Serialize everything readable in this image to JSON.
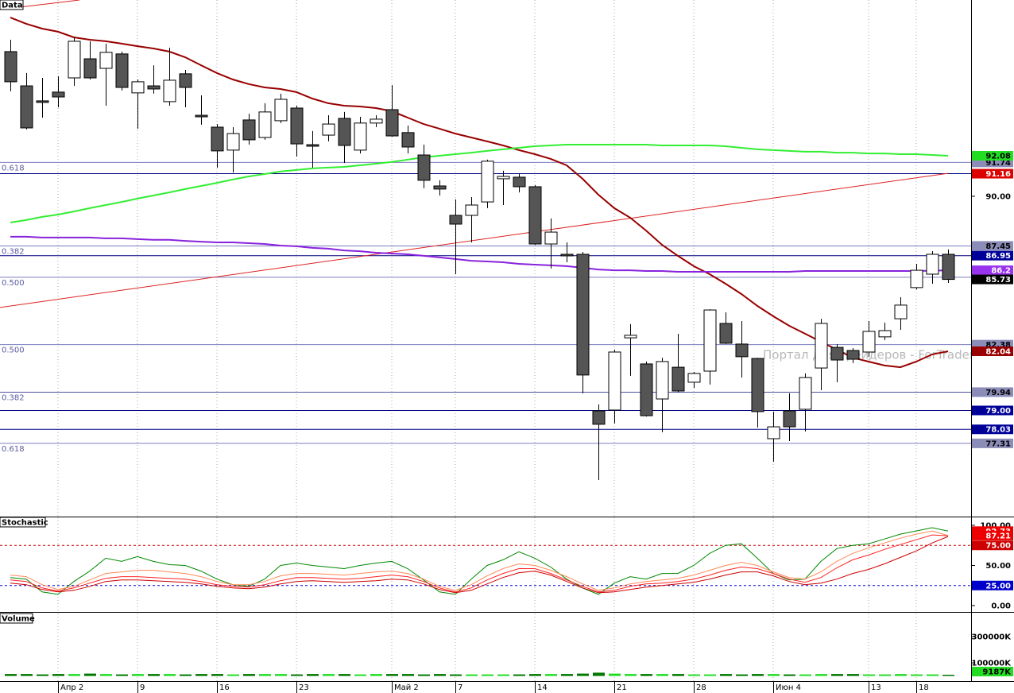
{
  "chart_data": [
    {
      "type": "candlestick",
      "title": "Data",
      "watermark": "Портал для трейдеров - ForTrader.ru",
      "categories": [
        null,
        null,
        null,
        "Апр 2",
        null,
        null,
        null,
        null,
        "9",
        null,
        null,
        null,
        null,
        "16",
        null,
        null,
        null,
        null,
        "23",
        null,
        null,
        null,
        null,
        null,
        "Май 2",
        null,
        null,
        null,
        "7",
        null,
        null,
        null,
        null,
        "14",
        null,
        null,
        null,
        null,
        "21",
        null,
        null,
        null,
        null,
        "28",
        null,
        null,
        null,
        null,
        "Июн 4",
        null,
        null,
        null,
        null,
        null,
        "13",
        null,
        null,
        "18",
        null,
        null
      ],
      "open": [
        97.43,
        95.67,
        94.9,
        95.35,
        96.08,
        97.06,
        96.57,
        97.31,
        95.31,
        95.67,
        94.86,
        96.29,
        94.16,
        93.55,
        92.37,
        93.92,
        93.02,
        93.88,
        94.53,
        92.65,
        93.14,
        94.0,
        92.37,
        93.76,
        94.45,
        93.27,
        92.12,
        90.53,
        89.02,
        89.02,
        89.71,
        90.9,
        90.98,
        90.49,
        87.55,
        87.02,
        87.02,
        78.98,
        79.02,
        82.73,
        81.39,
        79.59,
        81.22,
        80.45,
        81.02,
        83.47,
        82.41,
        81.67,
        77.55,
        78.98,
        79.06,
        81.18,
        82.24,
        82.08,
        82.0,
        82.78,
        83.71,
        85.31,
        86.0,
        87.02
      ],
      "high": [
        98.04,
        96.33,
        96.08,
        96.16,
        98.16,
        97.96,
        97.84,
        97.43,
        96.0,
        96.73,
        97.63,
        96.49,
        95.18,
        93.71,
        93.55,
        94.24,
        94.78,
        95.27,
        94.65,
        93.35,
        94.16,
        94.33,
        94.08,
        94.16,
        95.71,
        93.63,
        92.65,
        90.82,
        89.84,
        89.96,
        91.88,
        91.31,
        91.14,
        90.57,
        88.86,
        87.63,
        87.14,
        79.31,
        82.12,
        83.43,
        81.51,
        81.71,
        82.94,
        80.98,
        84.2,
        84.04,
        83.59,
        81.71,
        78.94,
        79.88,
        80.9,
        83.71,
        82.41,
        82.2,
        83.59,
        83.51,
        84.82,
        86.53,
        87.18,
        87.27
      ],
      "low": [
        95.39,
        93.43,
        94.04,
        94.57,
        95.67,
        96.0,
        94.65,
        95.43,
        93.47,
        95.27,
        94.65,
        94.57,
        93.67,
        91.47,
        91.22,
        92.65,
        92.9,
        93.76,
        92.04,
        91.47,
        92.82,
        91.71,
        92.2,
        93.55,
        93.06,
        92.2,
        90.41,
        90.04,
        86.0,
        87.63,
        89.39,
        89.55,
        90.2,
        87.51,
        86.29,
        86.61,
        79.88,
        75.43,
        78.33,
        80.78,
        78.69,
        77.88,
        79.92,
        80.16,
        80.33,
        82.41,
        80.69,
        78.12,
        76.37,
        77.43,
        77.92,
        80.04,
        80.45,
        81.43,
        81.76,
        82.61,
        83.14,
        85.22,
        85.51,
        85.55
      ],
      "close": [
        95.88,
        93.51,
        94.82,
        95.1,
        97.96,
        96.08,
        97.39,
        95.59,
        95.88,
        95.51,
        95.96,
        95.59,
        94.08,
        92.33,
        93.22,
        92.9,
        94.33,
        94.98,
        92.69,
        92.57,
        93.71,
        92.61,
        93.76,
        93.96,
        93.1,
        92.53,
        90.82,
        90.37,
        88.57,
        89.55,
        91.8,
        91.02,
        90.49,
        87.55,
        88.16,
        86.94,
        80.82,
        78.29,
        82.0,
        82.86,
        78.73,
        81.51,
        80.0,
        80.9,
        84.16,
        82.45,
        81.76,
        78.94,
        78.16,
        78.16,
        80.69,
        83.47,
        81.59,
        81.63,
        83.06,
        83.1,
        84.41,
        86.2,
        87.02,
        85.73
      ],
      "up_color": "#ffffff",
      "down_color": "#555555",
      "close_label_bg": "#000000",
      "ylim": [
        73.55,
        100.08
      ],
      "yticks": [
        {
          "value": 90,
          "label": "90.00"
        }
      ],
      "lines": [
        {
          "color": "#990000",
          "width": 2,
          "label_bg": "#990000",
          "label_fg": "#ffffff",
          "values": [
            99.18,
            98.86,
            98.61,
            98.45,
            98.16,
            98.04,
            97.96,
            97.84,
            97.71,
            97.59,
            97.43,
            97.14,
            96.73,
            96.33,
            96.0,
            95.76,
            95.59,
            95.51,
            95.35,
            95.02,
            94.78,
            94.65,
            94.61,
            94.53,
            94.37,
            94.04,
            93.71,
            93.47,
            93.22,
            93.02,
            92.82,
            92.61,
            92.37,
            92.16,
            91.92,
            91.59,
            90.9,
            90.08,
            89.39,
            88.9,
            88.24,
            87.51,
            86.94,
            86.41,
            86.0,
            85.51,
            84.98,
            84.37,
            83.84,
            83.35,
            82.94,
            82.53,
            82.12,
            81.71,
            81.51,
            81.31,
            81.22,
            81.51,
            81.88,
            82.04
          ]
        },
        {
          "color": "#33ee33",
          "width": 2,
          "label_bg": "#22dd22",
          "label_fg": "#000000",
          "values": [
            88.65,
            88.78,
            88.94,
            89.06,
            89.22,
            89.39,
            89.55,
            89.71,
            89.88,
            90.04,
            90.2,
            90.37,
            90.53,
            90.69,
            90.86,
            91.02,
            91.14,
            91.27,
            91.35,
            91.43,
            91.47,
            91.51,
            91.59,
            91.67,
            91.76,
            91.88,
            92.0,
            92.08,
            92.16,
            92.24,
            92.33,
            92.41,
            92.49,
            92.57,
            92.61,
            92.65,
            92.65,
            92.65,
            92.65,
            92.65,
            92.65,
            92.61,
            92.61,
            92.61,
            92.61,
            92.57,
            92.49,
            92.41,
            92.37,
            92.33,
            92.29,
            92.29,
            92.24,
            92.24,
            92.2,
            92.2,
            92.16,
            92.16,
            92.12,
            92.08
          ]
        },
        {
          "color": "#8822dd",
          "width": 2,
          "label_bg": "#9933ee",
          "label_fg": "#ffffff",
          "values": [
            87.92,
            87.92,
            87.88,
            87.88,
            87.88,
            87.88,
            87.84,
            87.84,
            87.8,
            87.76,
            87.76,
            87.71,
            87.67,
            87.63,
            87.63,
            87.59,
            87.55,
            87.47,
            87.43,
            87.35,
            87.31,
            87.22,
            87.18,
            87.1,
            87.06,
            87.02,
            86.94,
            86.86,
            86.78,
            86.69,
            86.65,
            86.61,
            86.53,
            86.49,
            86.45,
            86.41,
            86.33,
            86.24,
            86.2,
            86.2,
            86.16,
            86.16,
            86.12,
            86.12,
            86.12,
            86.12,
            86.12,
            86.12,
            86.12,
            86.12,
            86.16,
            86.16,
            86.16,
            86.16,
            86.16,
            86.16,
            86.16,
            86.16,
            86.18,
            86.2
          ]
        }
      ],
      "trendlines": [
        {
          "color": "#dd2222",
          "x": [
            -0.65,
            59
          ],
          "values": [
            84.29,
            91.18
          ]
        },
        {
          "color": "#dd2222",
          "x": [
            -0.65,
            4.35
          ],
          "values": [
            99.59,
            100.08
          ]
        }
      ],
      "levels": [
        {
          "value": 91.74,
          "fib": "0.618",
          "line": "#7b7bc0",
          "bg": "#8c8cb8",
          "fg": "#000000"
        },
        {
          "value": 91.16,
          "line": "#000080",
          "bg": "#dd0000",
          "fg": "#ffffff"
        },
        {
          "value": 87.45,
          "fib": "0.382",
          "line": "#7b7bc0",
          "bg": "#8c8cb8",
          "fg": "#000000"
        },
        {
          "value": 86.95,
          "line": "#000080",
          "bg": "#000099",
          "fg": "#ffffff"
        },
        {
          "value": 85.84,
          "fib": "0.500",
          "line": "#7b7bc0"
        },
        {
          "value": 82.38,
          "fib": "0.500",
          "line": "#7b7bc0",
          "bg": "#8c8cb8",
          "fg": "#000000"
        },
        {
          "value": 79.94,
          "fib": "0.382",
          "line": "#5050a0",
          "bg": "#8c8cb8",
          "fg": "#000000"
        },
        {
          "value": 79,
          "label": "79.00",
          "line": "#000080",
          "bg": "#000099",
          "fg": "#ffffff"
        },
        {
          "value": 78.03,
          "line": "#000080",
          "bg": "#000099",
          "fg": "#ffffff"
        },
        {
          "value": 77.31,
          "fib": "0.618",
          "line": "#7b7bc0",
          "bg": "#8c8cb8",
          "fg": "#000000"
        }
      ]
    },
    {
      "type": "line",
      "title": "Stochastic",
      "ylim": [
        -7.92,
        109.9
      ],
      "yticks": [
        {
          "value": 100,
          "label": "100.00"
        },
        {
          "value": 50,
          "label": "50.00"
        },
        {
          "value": 0,
          "label": "0.00"
        }
      ],
      "ref_lines": [
        {
          "value": 75,
          "label": "75.00",
          "color": "#cc0000",
          "bg": "#cc0000",
          "fg": "#ffffff"
        },
        {
          "value": 25,
          "label": "25.00",
          "color": "#0000cc",
          "bg": "#0000cc",
          "fg": "#ffffff"
        }
      ],
      "lines": [
        {
          "color": "#008800",
          "label_bg": "#ee0000",
          "label_fg": "#ffffff",
          "values": [
            35,
            33,
            17,
            14,
            30,
            43,
            59,
            55,
            61,
            55,
            51,
            50,
            43,
            33,
            26,
            24,
            33,
            50,
            53,
            50,
            48,
            46,
            50,
            53,
            55,
            46,
            32,
            17,
            14,
            33,
            50,
            57,
            67,
            59,
            48,
            33,
            22,
            14,
            28,
            36,
            33,
            40,
            40,
            50,
            65,
            75,
            77,
            59,
            40,
            32,
            33,
            55,
            71,
            75,
            77,
            83,
            89,
            93,
            97,
            92.73
          ]
        },
        {
          "color": "#ff8855",
          "label_bg": "#ee0000",
          "label_fg": "#ffffff",
          "values": [
            38,
            36,
            26,
            20,
            24,
            32,
            40,
            42,
            44,
            44,
            42,
            40,
            36,
            30,
            26,
            26,
            30,
            37,
            40,
            40,
            39,
            38,
            40,
            42,
            43,
            40,
            33,
            24,
            19,
            26,
            37,
            46,
            52,
            50,
            44,
            36,
            27,
            19,
            22,
            27,
            30,
            32,
            34,
            38,
            44,
            50,
            54,
            50,
            42,
            35,
            33,
            42,
            55,
            65,
            72,
            78,
            84,
            89,
            93,
            87.21
          ]
        },
        {
          "color": "#ff2222",
          "values": [
            32,
            30,
            22,
            18,
            22,
            28,
            34,
            36,
            36,
            35,
            34,
            33,
            30,
            26,
            24,
            23,
            26,
            31,
            35,
            35,
            34,
            33,
            34,
            36,
            38,
            36,
            30,
            22,
            17,
            22,
            32,
            40,
            46,
            46,
            40,
            32,
            24,
            17,
            19,
            24,
            27,
            28,
            30,
            33,
            38,
            44,
            48,
            46,
            40,
            33,
            29,
            35,
            47,
            57,
            63,
            70,
            76,
            82,
            88,
            87
          ]
        },
        {
          "color": "#cc0000",
          "values": [
            28,
            26,
            20,
            17,
            19,
            24,
            30,
            32,
            32,
            31,
            30,
            29,
            27,
            24,
            22,
            21,
            23,
            27,
            30,
            31,
            30,
            29,
            30,
            31,
            33,
            32,
            27,
            20,
            16,
            19,
            27,
            35,
            41,
            43,
            38,
            30,
            22,
            16,
            17,
            20,
            23,
            25,
            27,
            29,
            33,
            38,
            42,
            42,
            37,
            30,
            26,
            28,
            33,
            40,
            45,
            52,
            60,
            68,
            78,
            86
          ]
        }
      ]
    },
    {
      "type": "bar",
      "title": "Volume",
      "ylim": [
        -39000,
        476000
      ],
      "yticks": [
        {
          "value": 300000,
          "label": "300000K"
        },
        {
          "value": 100000,
          "label": "100000K"
        }
      ],
      "up_color": "#22dd22",
      "down_color": "#007700",
      "label_bg": "#22dd22",
      "values": [
        15000,
        15000,
        12000,
        15000,
        15000,
        18000,
        15000,
        12000,
        15000,
        15000,
        15000,
        12000,
        15000,
        15000,
        12000,
        15000,
        15000,
        15000,
        12000,
        15000,
        15000,
        15000,
        12000,
        15000,
        15000,
        15000,
        12000,
        15000,
        12000,
        12000,
        12000,
        12000,
        12000,
        15000,
        15000,
        15000,
        18000,
        25000,
        18000,
        15000,
        15000,
        15000,
        15000,
        12000,
        12000,
        15000,
        12000,
        15000,
        15000,
        12000,
        12000,
        15000,
        15000,
        15000,
        12000,
        12000,
        15000,
        12000,
        12000,
        9187
      ],
      "value_labels": [
        null,
        null,
        null,
        null,
        null,
        null,
        null,
        null,
        null,
        null,
        null,
        null,
        null,
        null,
        null,
        null,
        null,
        null,
        null,
        null,
        null,
        null,
        null,
        null,
        null,
        null,
        null,
        null,
        null,
        null,
        null,
        null,
        null,
        null,
        null,
        null,
        null,
        null,
        null,
        null,
        null,
        null,
        null,
        null,
        null,
        null,
        null,
        null,
        null,
        null,
        null,
        null,
        null,
        null,
        null,
        null,
        null,
        null,
        null,
        "9187K"
      ]
    }
  ]
}
